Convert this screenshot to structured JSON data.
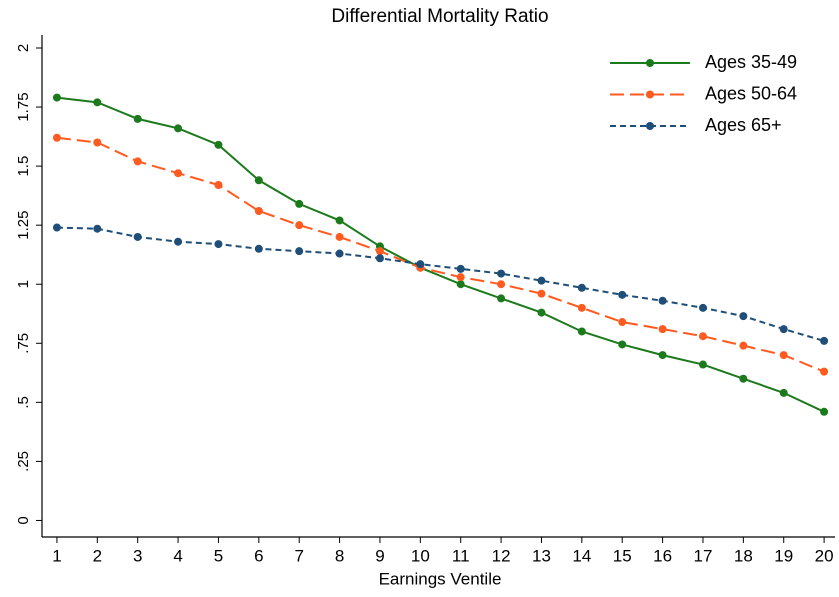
{
  "chart_data": {
    "type": "line",
    "title": "Differential Mortality Ratio",
    "x_label": "Earnings Ventile",
    "x": [
      1,
      2,
      3,
      4,
      5,
      6,
      7,
      8,
      9,
      10,
      11,
      12,
      13,
      14,
      15,
      16,
      17,
      18,
      19,
      20
    ],
    "xlim": [
      0.63,
      20.27
    ],
    "xticks": [
      1,
      2,
      3,
      4,
      5,
      6,
      7,
      8,
      9,
      10,
      11,
      12,
      13,
      14,
      15,
      16,
      17,
      18,
      19,
      20
    ],
    "ylim": [
      -0.07,
      2.055
    ],
    "yticks": [
      0,
      {
        "value": 0.25,
        "label": ".25"
      },
      {
        "value": 0.5,
        "label": ".5"
      },
      {
        "value": 0.75,
        "label": ".75"
      },
      1,
      1.25,
      1.5,
      1.75,
      2
    ],
    "legend": "top-right",
    "series": [
      {
        "name": "Ages 35-49",
        "color": "#1b7a1b",
        "line_style": "solid",
        "values": [
          1.79,
          1.77,
          1.7,
          1.66,
          1.59,
          1.44,
          1.34,
          1.27,
          1.16,
          1.07,
          1.0,
          0.94,
          0.88,
          0.8,
          0.745,
          0.7,
          0.66,
          0.6,
          0.54,
          0.46
        ]
      },
      {
        "name": "Ages 50-64",
        "color": "#ff5a1f",
        "line_style": "longdash",
        "values": [
          1.62,
          1.6,
          1.52,
          1.47,
          1.42,
          1.31,
          1.25,
          1.2,
          1.14,
          1.07,
          1.03,
          1.0,
          0.96,
          0.9,
          0.84,
          0.81,
          0.78,
          0.74,
          0.7,
          0.63
        ]
      },
      {
        "name": "Ages 65+",
        "color": "#1f4e79",
        "line_style": "dash",
        "values": [
          1.24,
          1.235,
          1.2,
          1.18,
          1.17,
          1.15,
          1.14,
          1.13,
          1.11,
          1.085,
          1.065,
          1.045,
          1.015,
          0.985,
          0.955,
          0.93,
          0.9,
          0.865,
          0.81,
          0.76
        ]
      }
    ]
  }
}
